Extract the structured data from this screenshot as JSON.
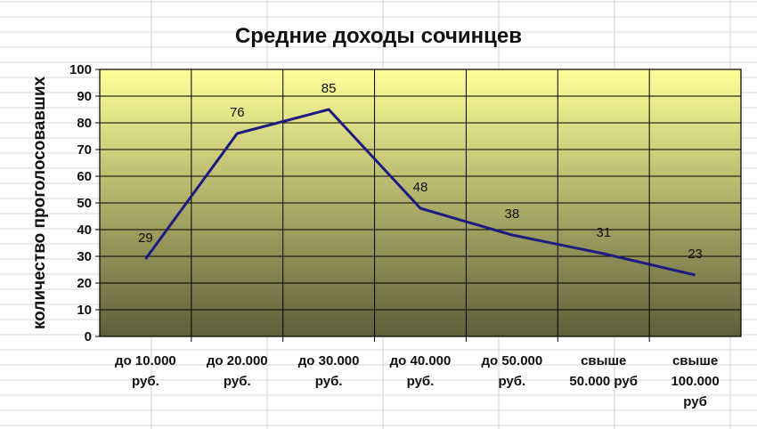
{
  "chart_data": {
    "type": "line",
    "title": "Средние доходы сочинцев",
    "xlabel": "",
    "ylabel": "количество проголосовавших",
    "categories": [
      [
        "до 10.000",
        "руб."
      ],
      [
        "до 20.000",
        "руб."
      ],
      [
        "до 30.000",
        "руб."
      ],
      [
        "до 40.000",
        "руб."
      ],
      [
        "до 50.000",
        "руб."
      ],
      [
        "свыше",
        "50.000 руб"
      ],
      [
        "свыше",
        "100.000",
        "руб"
      ]
    ],
    "series": [
      {
        "values": [
          29,
          76,
          85,
          48,
          38,
          31,
          23
        ]
      }
    ],
    "ylim": [
      0,
      100
    ],
    "yticks": [
      0,
      10,
      20,
      30,
      40,
      50,
      60,
      70,
      80,
      90,
      100
    ],
    "grid": true,
    "data_labels": true,
    "colors": {
      "line": "#1c1c80",
      "plot_top": "#ffff99",
      "plot_bottom": "#5e5e3a",
      "grid": "#000000",
      "sheet_grid": "#d4d4d4"
    }
  }
}
